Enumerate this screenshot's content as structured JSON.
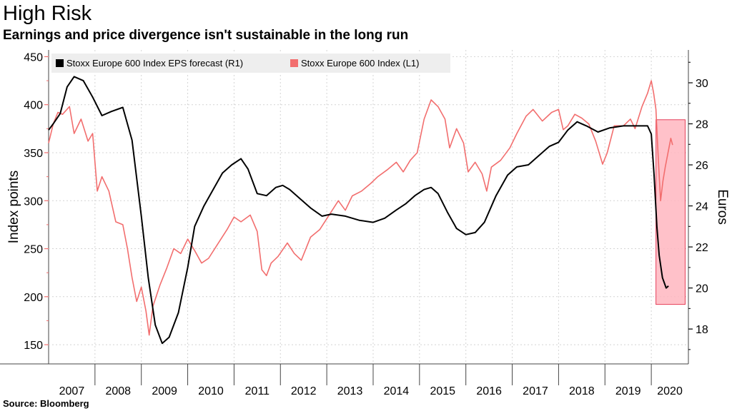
{
  "title": "High Risk",
  "subtitle": "Earnings and price divergence isn't sustainable in the long run",
  "source": "Source: Bloomberg",
  "colors": {
    "index": "#f26e6e",
    "eps": "#000000",
    "highlight_fill": "#ffb6bf",
    "highlight_stroke": "#e5405a",
    "grid": "#d4d4d4",
    "legend_bg": "#eeeeee"
  },
  "chart_data": {
    "type": "line",
    "xlabel": "",
    "ylabel_left": "Index points",
    "ylabel_right": "Euros",
    "x_ticks": [
      "2007",
      "2008",
      "2009",
      "2010",
      "2011",
      "2012",
      "2013",
      "2014",
      "2015",
      "2016",
      "2017",
      "2018",
      "2019",
      "2020"
    ],
    "y_left": {
      "ticks": [
        150,
        200,
        250,
        300,
        350,
        400,
        450
      ],
      "range": [
        130,
        457
      ]
    },
    "y_right": {
      "ticks": [
        18,
        20,
        22,
        24,
        26,
        28,
        30
      ],
      "range": [
        16.3,
        31.6
      ]
    },
    "grid": true,
    "legend_position": "top-left",
    "series": [
      {
        "name": "Stoxx Europe 600 Index EPS forecast (R1)",
        "axis": "right",
        "color": "#000000",
        "points": [
          [
            2007.0,
            27.7
          ],
          [
            2007.1,
            28.0
          ],
          [
            2007.25,
            28.5
          ],
          [
            2007.4,
            29.8
          ],
          [
            2007.55,
            30.3
          ],
          [
            2007.75,
            30.1
          ],
          [
            2007.95,
            29.3
          ],
          [
            2008.15,
            28.4
          ],
          [
            2008.35,
            28.6
          ],
          [
            2008.6,
            28.8
          ],
          [
            2008.8,
            27.2
          ],
          [
            2009.0,
            23.5
          ],
          [
            2009.15,
            20.5
          ],
          [
            2009.3,
            18.2
          ],
          [
            2009.45,
            17.3
          ],
          [
            2009.6,
            17.6
          ],
          [
            2009.8,
            18.8
          ],
          [
            2010.0,
            21.0
          ],
          [
            2010.15,
            23.0
          ],
          [
            2010.35,
            24.0
          ],
          [
            2010.55,
            24.8
          ],
          [
            2010.75,
            25.6
          ],
          [
            2010.95,
            26.0
          ],
          [
            2011.15,
            26.3
          ],
          [
            2011.3,
            25.8
          ],
          [
            2011.5,
            24.6
          ],
          [
            2011.7,
            24.5
          ],
          [
            2011.9,
            24.9
          ],
          [
            2012.05,
            25.0
          ],
          [
            2012.2,
            24.8
          ],
          [
            2012.4,
            24.4
          ],
          [
            2012.65,
            23.9
          ],
          [
            2012.9,
            23.5
          ],
          [
            2013.1,
            23.6
          ],
          [
            2013.4,
            23.5
          ],
          [
            2013.7,
            23.3
          ],
          [
            2014.0,
            23.2
          ],
          [
            2014.25,
            23.4
          ],
          [
            2014.5,
            23.8
          ],
          [
            2014.7,
            24.1
          ],
          [
            2014.9,
            24.5
          ],
          [
            2015.1,
            24.8
          ],
          [
            2015.25,
            24.9
          ],
          [
            2015.4,
            24.6
          ],
          [
            2015.6,
            23.7
          ],
          [
            2015.8,
            22.9
          ],
          [
            2016.0,
            22.6
          ],
          [
            2016.2,
            22.7
          ],
          [
            2016.4,
            23.2
          ],
          [
            2016.65,
            24.5
          ],
          [
            2016.9,
            25.5
          ],
          [
            2017.1,
            25.9
          ],
          [
            2017.35,
            26.0
          ],
          [
            2017.55,
            26.4
          ],
          [
            2017.8,
            26.9
          ],
          [
            2018.0,
            27.1
          ],
          [
            2018.2,
            27.7
          ],
          [
            2018.4,
            28.1
          ],
          [
            2018.6,
            27.9
          ],
          [
            2018.85,
            27.6
          ],
          [
            2019.1,
            27.8
          ],
          [
            2019.4,
            27.9
          ],
          [
            2019.7,
            27.9
          ],
          [
            2019.92,
            27.9
          ],
          [
            2020.0,
            27.5
          ],
          [
            2020.06,
            25.5
          ],
          [
            2020.12,
            23.0
          ],
          [
            2020.17,
            21.6
          ],
          [
            2020.24,
            20.5
          ],
          [
            2020.32,
            20.0
          ],
          [
            2020.37,
            20.1
          ]
        ]
      },
      {
        "name": "Stoxx Europe 600 Index (L1)",
        "axis": "left",
        "color": "#f26e6e",
        "points": [
          [
            2007.0,
            360
          ],
          [
            2007.1,
            380
          ],
          [
            2007.2,
            392
          ],
          [
            2007.3,
            390
          ],
          [
            2007.45,
            398
          ],
          [
            2007.55,
            370
          ],
          [
            2007.7,
            385
          ],
          [
            2007.85,
            362
          ],
          [
            2007.95,
            370
          ],
          [
            2008.05,
            310
          ],
          [
            2008.15,
            325
          ],
          [
            2008.3,
            310
          ],
          [
            2008.45,
            278
          ],
          [
            2008.6,
            275
          ],
          [
            2008.7,
            250
          ],
          [
            2008.8,
            220
          ],
          [
            2008.9,
            195
          ],
          [
            2009.0,
            210
          ],
          [
            2009.1,
            185
          ],
          [
            2009.17,
            160
          ],
          [
            2009.25,
            190
          ],
          [
            2009.4,
            212
          ],
          [
            2009.55,
            230
          ],
          [
            2009.7,
            250
          ],
          [
            2009.85,
            245
          ],
          [
            2010.0,
            260
          ],
          [
            2010.15,
            248
          ],
          [
            2010.3,
            235
          ],
          [
            2010.45,
            240
          ],
          [
            2010.65,
            255
          ],
          [
            2010.85,
            270
          ],
          [
            2011.0,
            283
          ],
          [
            2011.15,
            278
          ],
          [
            2011.35,
            285
          ],
          [
            2011.5,
            268
          ],
          [
            2011.6,
            228
          ],
          [
            2011.7,
            222
          ],
          [
            2011.8,
            235
          ],
          [
            2011.95,
            242
          ],
          [
            2012.15,
            256
          ],
          [
            2012.3,
            245
          ],
          [
            2012.45,
            238
          ],
          [
            2012.65,
            262
          ],
          [
            2012.85,
            270
          ],
          [
            2013.05,
            285
          ],
          [
            2013.25,
            300
          ],
          [
            2013.4,
            290
          ],
          [
            2013.55,
            305
          ],
          [
            2013.75,
            310
          ],
          [
            2013.95,
            318
          ],
          [
            2014.1,
            325
          ],
          [
            2014.3,
            332
          ],
          [
            2014.5,
            340
          ],
          [
            2014.65,
            330
          ],
          [
            2014.8,
            342
          ],
          [
            2014.95,
            350
          ],
          [
            2015.1,
            385
          ],
          [
            2015.25,
            405
          ],
          [
            2015.4,
            398
          ],
          [
            2015.55,
            385
          ],
          [
            2015.65,
            355
          ],
          [
            2015.8,
            375
          ],
          [
            2015.95,
            360
          ],
          [
            2016.05,
            330
          ],
          [
            2016.2,
            340
          ],
          [
            2016.35,
            328
          ],
          [
            2016.45,
            310
          ],
          [
            2016.55,
            335
          ],
          [
            2016.75,
            342
          ],
          [
            2016.95,
            355
          ],
          [
            2017.1,
            370
          ],
          [
            2017.3,
            388
          ],
          [
            2017.45,
            395
          ],
          [
            2017.65,
            383
          ],
          [
            2017.85,
            392
          ],
          [
            2018.0,
            395
          ],
          [
            2018.1,
            374
          ],
          [
            2018.2,
            378
          ],
          [
            2018.35,
            390
          ],
          [
            2018.5,
            386
          ],
          [
            2018.65,
            380
          ],
          [
            2018.8,
            362
          ],
          [
            2018.95,
            338
          ],
          [
            2019.05,
            350
          ],
          [
            2019.2,
            378
          ],
          [
            2019.4,
            378
          ],
          [
            2019.55,
            385
          ],
          [
            2019.65,
            375
          ],
          [
            2019.8,
            398
          ],
          [
            2019.92,
            412
          ],
          [
            2020.0,
            425
          ],
          [
            2020.05,
            412
          ],
          [
            2020.1,
            395
          ],
          [
            2020.15,
            345
          ],
          [
            2020.2,
            300
          ],
          [
            2020.25,
            320
          ],
          [
            2020.3,
            335
          ],
          [
            2020.36,
            350
          ],
          [
            2020.42,
            365
          ],
          [
            2020.46,
            358
          ]
        ]
      }
    ],
    "highlight": {
      "x_range": [
        2020.1,
        2020.73
      ],
      "y_right_range": [
        19.2,
        28.2
      ]
    }
  }
}
